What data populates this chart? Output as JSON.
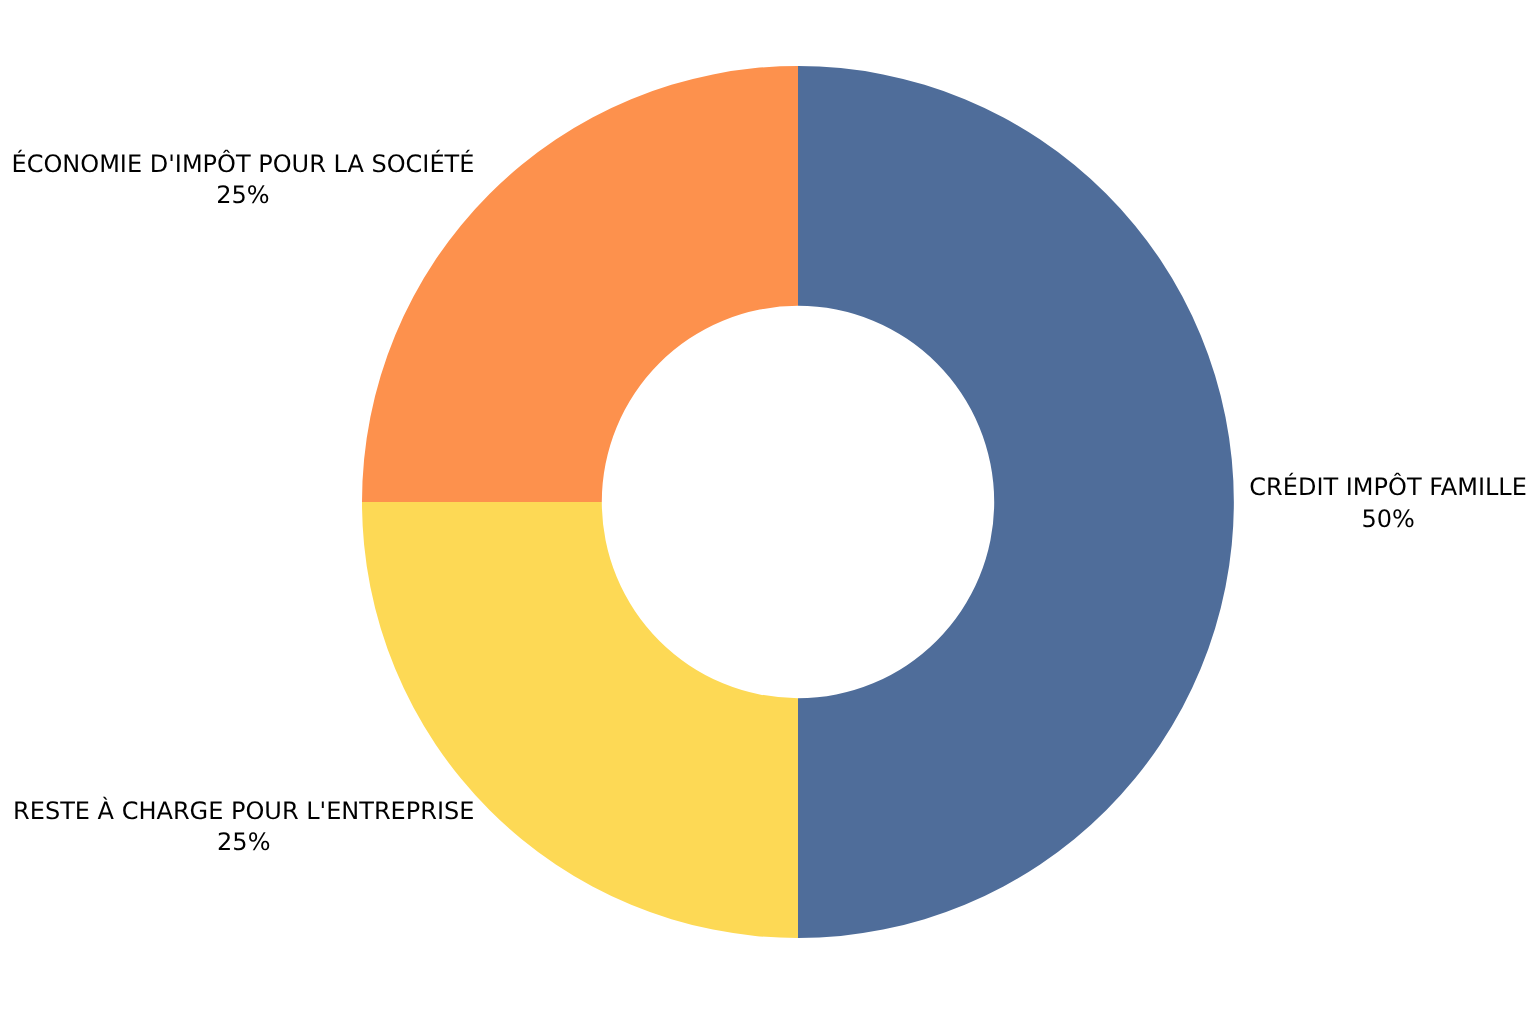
{
  "chart_data": {
    "type": "donut",
    "categories": [
      "CRÉDIT IMPÔT FAMILLE",
      "RESTE À CHARGE POUR L'ENTREPRISE",
      "ÉCONOMIE D'IMPÔT POUR LA SOCIÉTÉ"
    ],
    "values": [
      50,
      25,
      25
    ],
    "value_labels": [
      "50%",
      "25%",
      "25%"
    ],
    "colors": [
      "#4f6d9a",
      "#fdd955",
      "#fd914d"
    ],
    "legend": false
  }
}
